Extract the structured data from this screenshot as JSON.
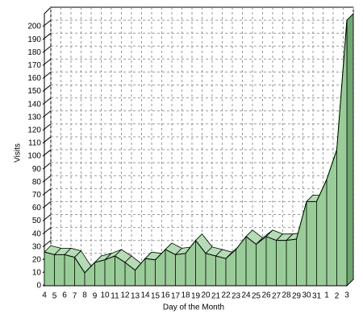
{
  "chart_data": {
    "type": "area3d",
    "x_label": "Day of the Month",
    "y_label": "Visits",
    "categories": [
      "4",
      "5",
      "6",
      "7",
      "8",
      "9",
      "10",
      "11",
      "12",
      "13",
      "14",
      "15",
      "16",
      "17",
      "18",
      "19",
      "20",
      "21",
      "22",
      "23",
      "24",
      "25",
      "26",
      "27",
      "28",
      "29",
      "30",
      "31",
      "1",
      "2",
      "3"
    ],
    "values": [
      26,
      24,
      24,
      22,
      10,
      18,
      20,
      23,
      18,
      12,
      21,
      20,
      28,
      24,
      25,
      35,
      25,
      23,
      21,
      28,
      38,
      32,
      38,
      35,
      35,
      36,
      65,
      65,
      82,
      105,
      205
    ],
    "color": "#99cc99",
    "ylim": [
      0,
      210
    ],
    "yticks": [
      0,
      10,
      20,
      30,
      40,
      50,
      60,
      70,
      80,
      90,
      100,
      110,
      120,
      130,
      140,
      150,
      160,
      170,
      180,
      190,
      200
    ],
    "grid": true
  }
}
